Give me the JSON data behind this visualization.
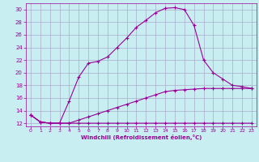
{
  "xlabel": "Windchill (Refroidissement éolien,°C)",
  "xlim": [
    -0.5,
    23.5
  ],
  "ylim": [
    11.5,
    31.0
  ],
  "yticks": [
    12,
    14,
    16,
    18,
    20,
    22,
    24,
    26,
    28,
    30
  ],
  "xticks": [
    0,
    1,
    2,
    3,
    4,
    5,
    6,
    7,
    8,
    9,
    10,
    11,
    12,
    13,
    14,
    15,
    16,
    17,
    18,
    19,
    20,
    21,
    22,
    23
  ],
  "background_color": "#c9eef1",
  "grid_color": "#aaaacc",
  "line_color": "#990099",
  "curve1_x": [
    0,
    1,
    2,
    3,
    4,
    5,
    6,
    7,
    8,
    9,
    10,
    11,
    12,
    13,
    14,
    15,
    16,
    17,
    18,
    19,
    20,
    21,
    22,
    23
  ],
  "curve1_y": [
    13.3,
    12.2,
    12.0,
    12.0,
    12.0,
    12.0,
    12.0,
    12.0,
    12.0,
    12.0,
    12.0,
    12.0,
    12.0,
    12.0,
    12.0,
    12.0,
    12.0,
    12.0,
    12.0,
    12.0,
    12.0,
    12.0,
    12.0,
    12.0
  ],
  "curve2_x": [
    0,
    1,
    2,
    3,
    4,
    5,
    6,
    7,
    8,
    9,
    10,
    11,
    12,
    13,
    14,
    15,
    16,
    17,
    18,
    19,
    20,
    21,
    22,
    23
  ],
  "curve2_y": [
    13.3,
    12.2,
    12.0,
    12.0,
    12.0,
    12.5,
    13.0,
    13.5,
    14.0,
    14.5,
    15.0,
    15.5,
    16.0,
    16.5,
    17.0,
    17.2,
    17.3,
    17.4,
    17.5,
    17.5,
    17.5,
    17.5,
    17.5,
    17.5
  ],
  "curve3_x": [
    0,
    1,
    2,
    3,
    4,
    5,
    6,
    7,
    8,
    9,
    10,
    11,
    12,
    13,
    14,
    15,
    16,
    17,
    18,
    19,
    20,
    21,
    22,
    23
  ],
  "curve3_y": [
    13.3,
    12.2,
    12.0,
    12.0,
    15.5,
    19.3,
    21.5,
    21.8,
    22.5,
    24.0,
    25.5,
    27.2,
    28.3,
    29.5,
    30.2,
    30.3,
    30.0,
    27.5,
    22.0,
    20.0,
    19.0,
    18.0,
    17.8,
    17.5
  ]
}
